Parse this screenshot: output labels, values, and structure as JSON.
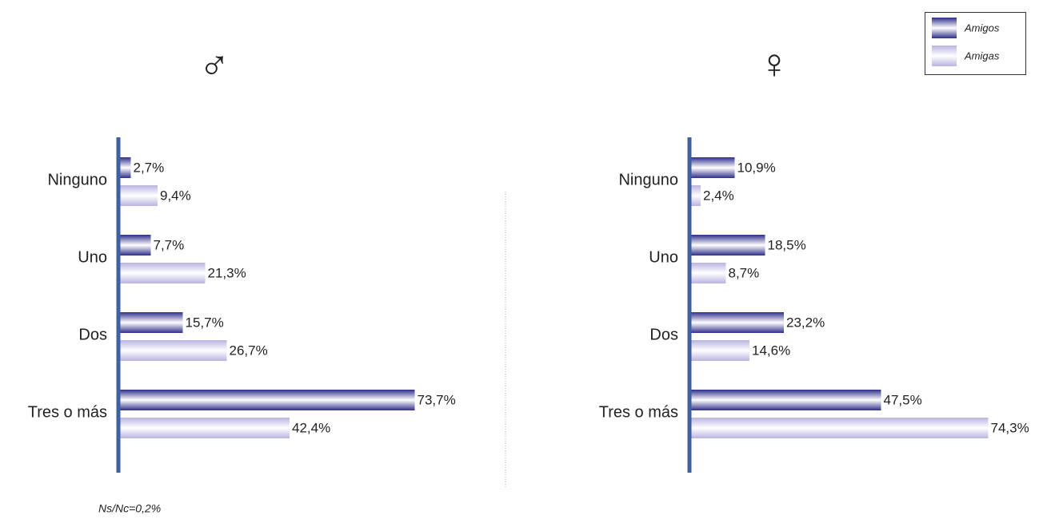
{
  "chart_data": [
    {
      "type": "bar",
      "orientation": "horizontal",
      "title": "♂",
      "categories": [
        "Ninguno",
        "Uno",
        "Dos",
        "Tres o más"
      ],
      "series": [
        {
          "name": "Amigos",
          "color": "#2e2e8a",
          "values": [
            2.7,
            7.7,
            15.7,
            73.7
          ],
          "value_labels": [
            "2,7%",
            "7,7%",
            "15,7%",
            "73,7%"
          ]
        },
        {
          "name": "Amigas",
          "color": "#b8b4e0",
          "values": [
            9.4,
            21.3,
            26.7,
            42.4
          ],
          "value_labels": [
            "9,4%",
            "21,3%",
            "26,7%",
            "42,4%"
          ]
        }
      ],
      "xlim": [
        0,
        80
      ],
      "annotation": "Ns/Nc=0,2%"
    },
    {
      "type": "bar",
      "orientation": "horizontal",
      "title": "♀",
      "categories": [
        "Ninguno",
        "Uno",
        "Dos",
        "Tres o más"
      ],
      "series": [
        {
          "name": "Amigos",
          "color": "#2e2e8a",
          "values": [
            10.9,
            18.5,
            23.2,
            47.5
          ],
          "value_labels": [
            "10,9%",
            "18,5%",
            "23,2%",
            "47,5%"
          ]
        },
        {
          "name": "Amigas",
          "color": "#b8b4e0",
          "values": [
            2.4,
            8.7,
            14.6,
            74.3
          ],
          "value_labels": [
            "2,4%",
            "8,7%",
            "14,6%",
            "74,3%"
          ]
        }
      ],
      "xlim": [
        0,
        80
      ],
      "legend": "upper right"
    }
  ]
}
